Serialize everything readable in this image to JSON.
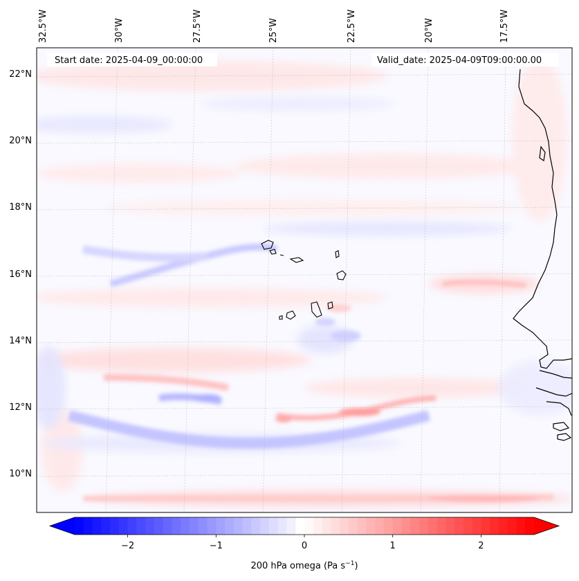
{
  "map": {
    "start_label": "Start date: 2025-04-09_00:00:00",
    "valid_label": "Valid_date: 2025-04-09T09:00:00.00",
    "lon_labels": [
      "32.5°W",
      "30°W",
      "27.5°W",
      "25°W",
      "22.5°W",
      "20°W",
      "17.5°W"
    ],
    "lat_labels": [
      "22°N",
      "20°N",
      "18°N",
      "16°N",
      "14°N",
      "12°N",
      "10°N"
    ]
  },
  "colorbar": {
    "label_main": "200 hPa omega (Pa s",
    "label_exp": "−1",
    "label_close": ")",
    "ticks": [
      "−2",
      "−1",
      "0",
      "1",
      "2"
    ],
    "vmin": -2.6,
    "vmax": 2.6,
    "tick_values": [
      -2,
      -1,
      0,
      1,
      2
    ],
    "colors": {
      "negative": "#0000ff",
      "zero": "#ffffff",
      "positive": "#ff0000"
    }
  }
}
